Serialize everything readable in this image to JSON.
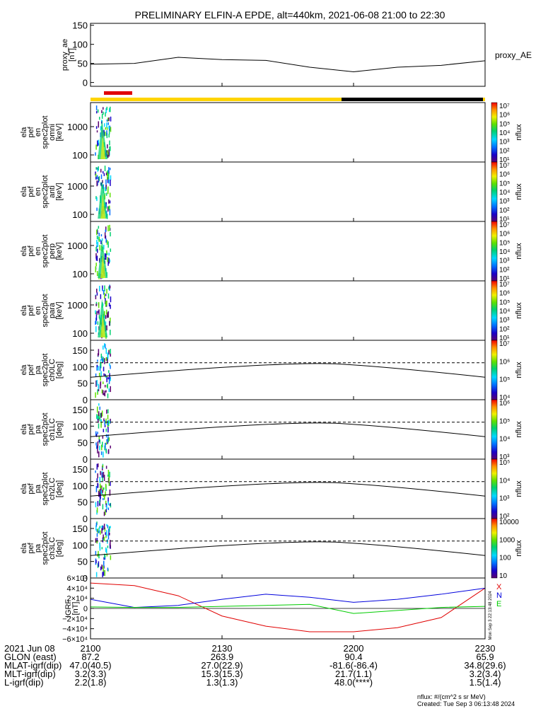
{
  "title": "PRELIMINARY ELFIN-A EPDE, alt=440km, 2021-06-08 21:00 to 22:30",
  "colors": {
    "orbit_bar_main": "#ffd400",
    "orbit_bar_shadow": "#000000",
    "science_zone_marker": "#e00000",
    "grf_x": "#e00000",
    "grf_y": "#0000dd",
    "grf_z": "#00cc00"
  },
  "chart_data": [
    {
      "type": "line",
      "name": "proxy_ae",
      "ylabel": "proxy_ae\n[nT]",
      "legend": "proxy_AE",
      "ylim": [
        -10,
        155
      ],
      "yticks": [
        "150",
        "100",
        "50",
        "0"
      ],
      "x_minutes": [
        0,
        10,
        20,
        30,
        40,
        50,
        60,
        70,
        80,
        90
      ],
      "values": [
        48,
        50,
        66,
        60,
        58,
        40,
        28,
        40,
        45,
        57
      ]
    },
    {
      "type": "heatmap",
      "name": "spec_omni",
      "ylabel": "ela\npef\nen\nspec2plot\nomni\n[keV]",
      "yticks": [
        "1000",
        "100"
      ],
      "log_y": true,
      "colorbar": {
        "label": "nflux",
        "ticks": [
          "10⁷",
          "10⁶",
          "10⁵",
          "10⁴",
          "10³",
          "10²",
          "10¹"
        ]
      },
      "data_extent_minutes": [
        1.0,
        4.5
      ]
    },
    {
      "type": "heatmap",
      "name": "spec_anti",
      "ylabel": "ela\npef\nen\nspec2plot\nanti\n[keV]",
      "yticks": [
        "1000",
        "100"
      ],
      "log_y": true,
      "colorbar": {
        "label": "nflux",
        "ticks": [
          "10⁷",
          "10⁶",
          "10⁵",
          "10⁴",
          "10³",
          "10²",
          "10¹"
        ]
      },
      "data_extent_minutes": [
        1.0,
        4.5
      ]
    },
    {
      "type": "heatmap",
      "name": "spec_perp",
      "ylabel": "ela\npef\nen\nspec2plot\nperp\n[keV]",
      "yticks": [
        "1000",
        "100"
      ],
      "log_y": true,
      "colorbar": {
        "label": "nflux",
        "ticks": [
          "10⁷",
          "10⁶",
          "10⁵",
          "10⁴",
          "10³",
          "10²",
          "10¹"
        ]
      },
      "data_extent_minutes": [
        1.0,
        4.5
      ]
    },
    {
      "type": "heatmap",
      "name": "spec_para",
      "ylabel": "ela\npef\nen\nspec2plot\npara\n[keV]",
      "yticks": [
        "1000",
        "100"
      ],
      "log_y": true,
      "colorbar": {
        "label": "nflux",
        "ticks": [
          "10⁷",
          "10⁶",
          "10⁵",
          "10⁴",
          "10³",
          "10²",
          "10¹"
        ]
      },
      "data_extent_minutes": [
        1.0,
        4.5
      ]
    },
    {
      "type": "heatmap",
      "name": "pa_ch0",
      "ylabel": "ela\npef\npa\nspec2plot\nch0LC\n[deg]",
      "yticks": [
        "150",
        "100",
        "50",
        "0"
      ],
      "ylim": [
        0,
        180
      ],
      "colorbar": {
        "label": "nflux",
        "ticks": [
          "10⁷",
          "10⁶",
          "10⁵",
          "10⁴"
        ]
      },
      "data_extent_minutes": [
        1.0,
        4.5
      ]
    },
    {
      "type": "heatmap",
      "name": "pa_ch1",
      "ylabel": "ela\npef\npa\nspec2plot\nch1LC\n[deg]",
      "yticks": [
        "150",
        "100",
        "50",
        "0"
      ],
      "ylim": [
        0,
        180
      ],
      "colorbar": {
        "label": "nflux",
        "ticks": [
          "10⁶",
          "10⁵",
          "10⁴",
          "10³"
        ]
      },
      "data_extent_minutes": [
        1.0,
        4.5
      ]
    },
    {
      "type": "heatmap",
      "name": "pa_ch2",
      "ylabel": "ela\npef\npa\nspec2plot\nch2LC\n[deg]",
      "yticks": [
        "150",
        "100",
        "50",
        "0"
      ],
      "ylim": [
        0,
        180
      ],
      "colorbar": {
        "label": "nflux",
        "ticks": [
          "10⁵",
          "10⁴",
          "10³",
          "10²"
        ]
      },
      "data_extent_minutes": [
        1.0,
        4.5
      ]
    },
    {
      "type": "heatmap",
      "name": "pa_ch3",
      "ylabel": "ela\npef\npa\nspec2plot\nch3LC\n[deg]",
      "yticks": [
        "150",
        "100",
        "50",
        "0"
      ],
      "ylim": [
        0,
        180
      ],
      "colorbar": {
        "label": "nflux",
        "ticks": [
          "10000",
          "1000",
          "100",
          "10"
        ]
      },
      "data_extent_minutes": [
        1.0,
        4.5
      ]
    },
    {
      "type": "line",
      "name": "bt89",
      "ylabel": "IGRF\n[nT]",
      "yticks": [
        "6×10⁴",
        "4×10⁴",
        "2×10⁴",
        "0",
        "−2×10⁴",
        "−4×10⁴",
        "−6×10⁴"
      ],
      "ylim": [
        -60000,
        60000
      ],
      "legend": [
        "X",
        "N",
        "E"
      ],
      "side_text": "Mon Sep 3 22:13:48 2024",
      "x_minutes": [
        0,
        10,
        20,
        30,
        40,
        50,
        60,
        70,
        80,
        90
      ],
      "series": [
        {
          "name": "X",
          "values": [
            50000,
            45000,
            25000,
            -15000,
            -35000,
            -46000,
            -46000,
            -38000,
            -18000,
            40000
          ]
        },
        {
          "name": "N",
          "values": [
            18000,
            2000,
            6000,
            18000,
            28000,
            22000,
            12000,
            18000,
            28000,
            40000
          ]
        },
        {
          "name": "E",
          "values": [
            3000,
            2000,
            2000,
            4000,
            6000,
            8000,
            -10000,
            -4000,
            2000,
            4000
          ]
        }
      ]
    }
  ],
  "axis": {
    "rows": [
      {
        "label": "2021 Jun 08",
        "v": [
          "2100",
          "2130",
          "2200",
          "2230"
        ]
      },
      {
        "label": "GLON (east)",
        "v": [
          "87.2",
          "263.9",
          "90.4",
          "65.9"
        ]
      },
      {
        "label": "MLAT-igrf(dip)",
        "v": [
          "47.0(40.5)",
          "27.0(22.9)",
          "-81.6(-86.4)",
          "34.8(29.6)"
        ]
      },
      {
        "label": "MLT-igrf(dip)",
        "v": [
          "3.2(3.3)",
          "15.3(15.3)",
          "21.7(1.1)",
          "3.2(3.4)"
        ]
      },
      {
        "label": "L-igrf(dip)",
        "v": [
          "2.2(1.8)",
          "1.3(1.3)",
          "48.0(****)",
          "1.5(1.4)"
        ]
      }
    ]
  },
  "footer": {
    "line1": "nflux: #/(cm^2 s sr MeV)",
    "line2": "Created: Tue Sep  3 06:13:48 2024"
  }
}
